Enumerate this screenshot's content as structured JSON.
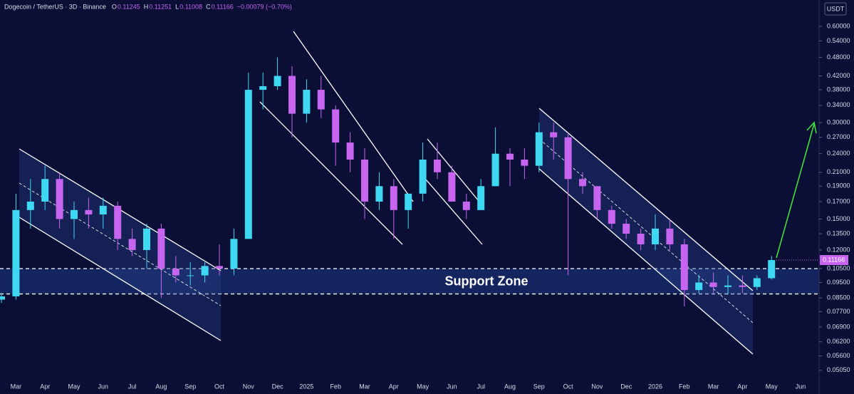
{
  "header": {
    "symbol": "Dogecoin / TetherUS · 3D · Binance",
    "ohlc": [
      {
        "label": "O",
        "value": "0.11245"
      },
      {
        "label": "H",
        "value": "0.11251"
      },
      {
        "label": "L",
        "value": "0.11008"
      },
      {
        "label": "C",
        "value": "0.11166"
      }
    ],
    "change": "−0.00079 (−0.70%)",
    "currency_button": "USDT"
  },
  "chart_data": {
    "type": "candlestick",
    "log_scale": true,
    "up_color": "#3fd8f2",
    "down_color": "#c765f0",
    "categories": [
      null,
      "Mar",
      null,
      "Apr",
      null,
      "May",
      null,
      "Jun",
      null,
      "Jul",
      null,
      "Aug",
      null,
      "Sep",
      null,
      "Oct",
      null,
      "Nov",
      null,
      "Dec",
      null,
      "2025",
      null,
      "Feb",
      null,
      "Mar",
      null,
      "Apr",
      null,
      "May",
      null,
      "Jun",
      null,
      "Jul",
      null,
      "Aug",
      null,
      "Sep",
      null,
      "Oct",
      null,
      "Nov",
      null,
      "Dec",
      null,
      "2026",
      null,
      "Feb",
      null,
      "Mar",
      null,
      "Apr",
      null,
      "May",
      null,
      "Jun"
    ],
    "open": [
      0.084,
      0.086,
      0.16,
      0.17,
      0.2,
      0.15,
      0.16,
      0.155,
      0.165,
      0.13,
      0.12,
      0.14,
      0.105,
      0.1,
      0.1,
      0.107,
      0.105,
      0.13,
      0.38,
      0.39,
      0.42,
      0.32,
      0.38,
      0.33,
      0.26,
      0.23,
      0.17,
      0.19,
      0.16,
      0.18,
      0.23,
      0.21,
      0.17,
      0.16,
      0.19,
      0.24,
      0.23,
      0.22,
      0.28,
      0.27,
      0.2,
      0.19,
      0.16,
      0.145,
      0.135,
      0.125,
      0.14,
      0.125,
      0.09,
      0.095,
      0.092,
      0.093,
      0.092,
      0.098,
      null,
      null
    ],
    "high": [
      0.088,
      0.18,
      0.2,
      0.22,
      0.21,
      0.17,
      0.175,
      0.175,
      0.17,
      0.14,
      0.145,
      0.145,
      0.115,
      0.11,
      0.11,
      0.125,
      0.14,
      0.43,
      0.43,
      0.48,
      0.45,
      0.41,
      0.42,
      0.34,
      0.28,
      0.25,
      0.21,
      0.2,
      0.18,
      0.26,
      0.26,
      0.22,
      0.18,
      0.2,
      0.29,
      0.25,
      0.25,
      0.3,
      0.3,
      0.28,
      0.21,
      0.19,
      0.165,
      0.15,
      0.14,
      0.155,
      0.15,
      0.13,
      0.1,
      0.102,
      0.1,
      0.1,
      0.1,
      0.115,
      null,
      null
    ],
    "low": [
      0.082,
      0.084,
      0.14,
      0.16,
      0.14,
      0.13,
      0.14,
      0.14,
      0.12,
      0.115,
      0.105,
      0.085,
      0.095,
      0.093,
      0.095,
      0.1,
      0.1,
      0.13,
      0.33,
      0.38,
      0.27,
      0.3,
      0.31,
      0.22,
      0.21,
      0.15,
      0.16,
      0.13,
      0.14,
      0.17,
      0.2,
      0.17,
      0.15,
      0.16,
      0.19,
      0.19,
      0.2,
      0.21,
      0.23,
      0.1,
      0.18,
      0.15,
      0.14,
      0.13,
      0.12,
      0.12,
      0.12,
      0.08,
      0.088,
      0.088,
      0.087,
      0.088,
      0.09,
      0.097,
      null,
      null
    ],
    "close": [
      0.086,
      0.16,
      0.17,
      0.2,
      0.15,
      0.16,
      0.155,
      0.165,
      0.13,
      0.12,
      0.14,
      0.105,
      0.1,
      0.1,
      0.107,
      0.105,
      0.13,
      0.38,
      0.39,
      0.42,
      0.32,
      0.38,
      0.33,
      0.26,
      0.23,
      0.17,
      0.19,
      0.16,
      0.18,
      0.23,
      0.21,
      0.17,
      0.16,
      0.19,
      0.24,
      0.23,
      0.22,
      0.28,
      0.27,
      0.2,
      0.19,
      0.16,
      0.145,
      0.135,
      0.125,
      0.14,
      0.125,
      0.09,
      0.095,
      0.092,
      0.093,
      0.092,
      0.098,
      0.11166,
      null,
      null
    ],
    "ylim": [
      0.0426,
      0.725
    ],
    "yticks": [
      {
        "value": 0.6,
        "label": "0.60000"
      },
      {
        "value": 0.54,
        "label": "0.54000"
      },
      {
        "value": 0.48,
        "label": "0.48000"
      },
      {
        "value": 0.42,
        "label": "0.42000"
      },
      {
        "value": 0.38,
        "label": "0.38000"
      },
      {
        "value": 0.34,
        "label": "0.34000"
      },
      {
        "value": 0.3,
        "label": "0.30000"
      },
      {
        "value": 0.27,
        "label": "0.27000"
      },
      {
        "value": 0.24,
        "label": "0.24000"
      },
      {
        "value": 0.21,
        "label": "0.21000"
      },
      {
        "value": 0.19,
        "label": "0.19000"
      },
      {
        "value": 0.17,
        "label": "0.17000"
      },
      {
        "value": 0.15,
        "label": "0.15000"
      },
      {
        "value": 0.135,
        "label": "0.13500"
      },
      {
        "value": 0.12,
        "label": "0.12000"
      },
      {
        "value": 0.105,
        "label": "0.10500"
      },
      {
        "value": 0.095,
        "label": "0.09500"
      },
      {
        "value": 0.085,
        "label": "0.08500"
      },
      {
        "value": 0.077,
        "label": "0.07700"
      },
      {
        "value": 0.069,
        "label": "0.06900"
      },
      {
        "value": 0.062,
        "label": "0.06200"
      },
      {
        "value": 0.056,
        "label": "0.05600"
      },
      {
        "value": 0.0505,
        "label": "0.05050"
      }
    ],
    "support_zone": {
      "label": "Support Zone",
      "range": [
        0.0875,
        0.105
      ],
      "color": "#14245e"
    }
  }
}
